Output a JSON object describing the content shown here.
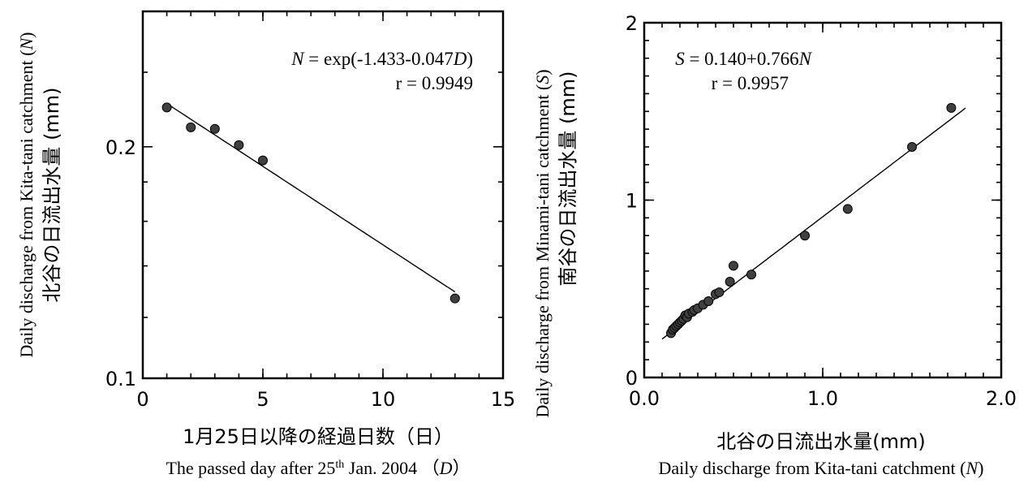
{
  "chart_data": [
    {
      "type": "scatter",
      "xlim": [
        0,
        15
      ],
      "ylim": [
        0.1,
        0.3
      ],
      "yscale": "log",
      "x_ticks": [
        0,
        5,
        10,
        15
      ],
      "x_tick_labels": [
        "0",
        "5",
        "10",
        "15"
      ],
      "y_ticks": [
        0.1,
        0.2
      ],
      "y_tick_labels": [
        "0.1",
        "0.2"
      ],
      "xlabel_jp": "1月25日以降の経過日数（日）",
      "xlabel_en_pre": "The passed day after 25",
      "xlabel_en_sup": "th",
      "xlabel_en_post": " Jan. 2004 （",
      "xlabel_en_var": "D",
      "xlabel_en_close": "）",
      "ylabel_en_pre": "Daily discharge from Kita-tani catchment (",
      "ylabel_en_var": "N",
      "ylabel_en_close": ")",
      "ylabel_jp": "北谷の日流出水量 (mm)",
      "equation_var": "N",
      "equation_mid": " = exp(-1.433-0.047",
      "equation_var2": "D",
      "equation_close": ")",
      "r_text": "r = 0.9949",
      "fit": {
        "model": "exp",
        "a": -1.433,
        "b": -0.047,
        "x_range": [
          1,
          13
        ]
      },
      "series": [
        {
          "x": [
            1,
            2,
            3,
            4,
            5,
            13
          ],
          "y": [
            0.225,
            0.212,
            0.211,
            0.201,
            0.192,
            0.127
          ]
        }
      ]
    },
    {
      "type": "scatter",
      "xlim": [
        0,
        2.0
      ],
      "ylim": [
        0,
        2
      ],
      "x_ticks": [
        0,
        1.0,
        2.0
      ],
      "x_tick_labels": [
        "0.0",
        "1.0",
        "2.0"
      ],
      "y_ticks": [
        0,
        1,
        2
      ],
      "y_tick_labels": [
        "0",
        "1",
        "2"
      ],
      "xlabel_jp": "北谷の日流出水量(mm)",
      "xlabel_en_pre": "Daily discharge from Kita-tani catchment (",
      "xlabel_en_var": "N",
      "xlabel_en_close": ")",
      "ylabel_en_pre": "Daily discharge from Minami-tani catchment (",
      "ylabel_en_var": "S",
      "ylabel_en_close": ")",
      "ylabel_jp": "南谷の日流出水量 (mm)",
      "equation_var": "S",
      "equation_mid": " = 0.140+0.766",
      "equation_var2": "N",
      "equation_close": "",
      "r_text": "r = 0.9957",
      "fit": {
        "model": "linear",
        "intercept": 0.14,
        "slope": 0.766,
        "x_range": [
          0.1,
          1.8
        ]
      },
      "series": [
        {
          "x": [
            0.15,
            0.16,
            0.17,
            0.18,
            0.19,
            0.2,
            0.21,
            0.22,
            0.23,
            0.24,
            0.25,
            0.27,
            0.28,
            0.3,
            0.33,
            0.36,
            0.4,
            0.42,
            0.48,
            0.5,
            0.6,
            0.9,
            1.14,
            1.5,
            1.72
          ],
          "y": [
            0.25,
            0.27,
            0.28,
            0.29,
            0.3,
            0.31,
            0.32,
            0.33,
            0.35,
            0.34,
            0.36,
            0.37,
            0.38,
            0.39,
            0.41,
            0.43,
            0.47,
            0.48,
            0.54,
            0.63,
            0.58,
            0.8,
            0.95,
            1.3,
            1.52
          ]
        }
      ]
    }
  ]
}
